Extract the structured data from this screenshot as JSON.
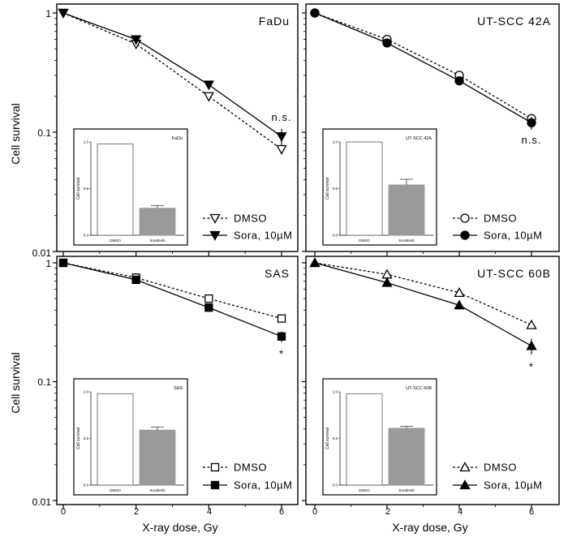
{
  "figure": {
    "ylabel": "Cell survival",
    "xlabel": "X-ray dose, Gy",
    "ytick_labels": [
      "1",
      "0.1",
      "0.01"
    ],
    "xtick_labels": [
      "0",
      "2",
      "4",
      "6"
    ],
    "legend": {
      "dmso": "DMSO",
      "sora": "Sora, 10µM"
    },
    "inset_text": {
      "ylabel": "Cell survival",
      "x_dmso": "DMSO",
      "x_sora": "Sorafenib",
      "ytick_labels": [
        "1.0",
        "0.5",
        "0.0"
      ]
    },
    "colors": {
      "line": "#000000",
      "inset_bar": "#9a9a9a",
      "background": "#ffffff"
    }
  },
  "chart_data": [
    {
      "type": "line",
      "title": "FaDu",
      "xlabel": "X-ray dose, Gy",
      "ylabel": "Cell survival",
      "yscale": "log",
      "ylim": [
        0.01,
        1
      ],
      "xlim": [
        0,
        6
      ],
      "x": [
        0,
        2,
        4,
        6
      ],
      "series": [
        {
          "name": "DMSO",
          "marker": "triangle-down-open",
          "dashed": true,
          "values": [
            1.0,
            0.55,
            0.2,
            0.072
          ]
        },
        {
          "name": "Sora, 10µM",
          "marker": "triangle-down-filled",
          "dashed": false,
          "values": [
            1.0,
            0.6,
            0.25,
            0.092
          ],
          "error": [
            0,
            0.02,
            0.02,
            0.015
          ]
        }
      ],
      "annotation": "n.s.",
      "annotation_x": 6,
      "annotation_y": 0.125,
      "inset": {
        "type": "bar",
        "title": "FaDu",
        "categories": [
          "DMSO",
          "Sorafenib"
        ],
        "values": [
          0.98,
          0.29
        ],
        "error": [
          0,
          0.03
        ],
        "ylim": [
          0,
          1.0
        ]
      }
    },
    {
      "type": "line",
      "title": "UT-SCC 42A",
      "xlabel": "X-ray dose, Gy",
      "ylabel": "Cell survival",
      "yscale": "log",
      "ylim": [
        0.01,
        1
      ],
      "xlim": [
        0,
        6
      ],
      "x": [
        0,
        2,
        4,
        6
      ],
      "series": [
        {
          "name": "DMSO",
          "marker": "circle-open",
          "dashed": true,
          "values": [
            1.0,
            0.6,
            0.3,
            0.13
          ]
        },
        {
          "name": "Sora, 10µM",
          "marker": "circle-filled",
          "dashed": false,
          "values": [
            1.0,
            0.56,
            0.27,
            0.12
          ],
          "error": [
            0,
            0.02,
            0.02,
            0.015
          ]
        }
      ],
      "annotation": "n.s.",
      "annotation_x": 6,
      "annotation_y": 0.08,
      "inset": {
        "type": "bar",
        "title": "UT-SCC 42A",
        "categories": [
          "DMSO",
          "Sorafenib"
        ],
        "values": [
          1.0,
          0.54
        ],
        "error": [
          0,
          0.06
        ],
        "ylim": [
          0,
          1.0
        ]
      }
    },
    {
      "type": "line",
      "title": "SAS",
      "xlabel": "X-ray dose, Gy",
      "ylabel": "Cell survival",
      "yscale": "log",
      "ylim": [
        0.01,
        1
      ],
      "xlim": [
        0,
        6
      ],
      "x": [
        0,
        2,
        4,
        6
      ],
      "series": [
        {
          "name": "DMSO",
          "marker": "square-open",
          "dashed": true,
          "values": [
            1.0,
            0.75,
            0.5,
            0.34
          ]
        },
        {
          "name": "Sora, 10µM",
          "marker": "square-filled",
          "dashed": false,
          "values": [
            1.0,
            0.72,
            0.42,
            0.24
          ],
          "error": [
            0,
            0.02,
            0.02,
            0.025
          ]
        }
      ],
      "annotation": "*",
      "annotation_x": 6,
      "annotation_y": 0.16,
      "inset": {
        "type": "bar",
        "title": "SAS",
        "categories": [
          "DMSO",
          "Sorafenib"
        ],
        "values": [
          0.98,
          0.59
        ],
        "error": [
          0,
          0.03
        ],
        "ylim": [
          0,
          1.0
        ]
      }
    },
    {
      "type": "line",
      "title": "UT-SCC 60B",
      "xlabel": "X-ray dose, Gy",
      "ylabel": "Cell survival",
      "yscale": "log",
      "ylim": [
        0.01,
        1
      ],
      "xlim": [
        0,
        6
      ],
      "x": [
        0,
        2,
        4,
        6
      ],
      "series": [
        {
          "name": "DMSO",
          "marker": "triangle-up-open",
          "dashed": true,
          "values": [
            1.0,
            0.8,
            0.56,
            0.3
          ]
        },
        {
          "name": "Sora, 10µM",
          "marker": "triangle-up-filled",
          "dashed": false,
          "values": [
            1.0,
            0.68,
            0.44,
            0.2
          ],
          "error": [
            0,
            0.02,
            0.03,
            0.03
          ]
        }
      ],
      "annotation": "*",
      "annotation_x": 6,
      "annotation_y": 0.125,
      "inset": {
        "type": "bar",
        "title": "UT-SCC 60B",
        "categories": [
          "DMSO",
          "Sorafenib"
        ],
        "values": [
          0.98,
          0.61
        ],
        "error": [
          0,
          0.02
        ],
        "ylim": [
          0,
          1.0
        ]
      }
    }
  ]
}
